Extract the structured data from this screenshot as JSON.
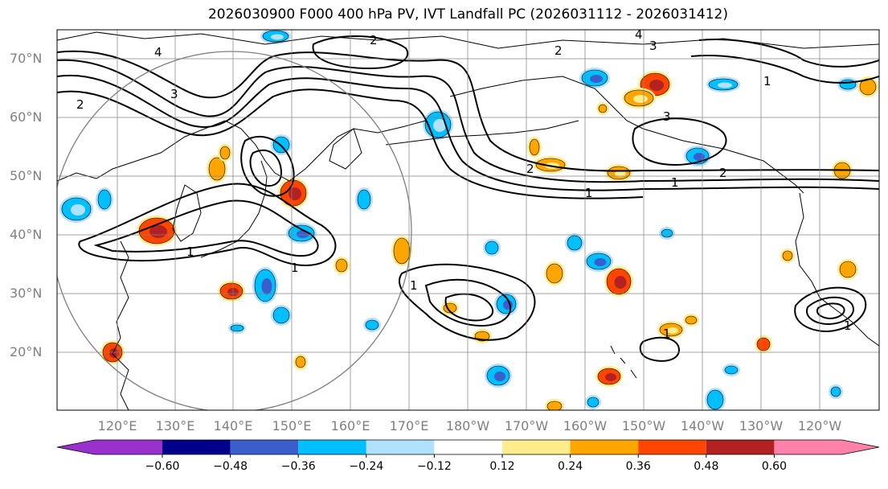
{
  "title": "2026030900 F000 400 hPa PV, IVT Landfall PC (2026031112 - 2026031412)",
  "lat_labels": [
    "70°N",
    "60°N",
    "50°N",
    "40°N",
    "30°N",
    "20°N"
  ],
  "lon_labels": [
    "120°E",
    "130°E",
    "140°E",
    "150°E",
    "160°E",
    "170°E",
    "180°W",
    "170°W",
    "160°W",
    "150°W",
    "140°W",
    "130°W",
    "120°W"
  ],
  "colorbar": {
    "ticks": [
      "−0.60",
      "−0.48",
      "−0.36",
      "−0.24",
      "−0.12",
      "0.12",
      "0.24",
      "0.36",
      "0.48",
      "0.60"
    ],
    "colors": [
      "#9932CC",
      "#00008B",
      "#3A5FCD",
      "#00BFFF",
      "#B0E2FF",
      "#FFFFFF",
      "#FFEC8B",
      "#FFA500",
      "#FF4500",
      "#B22222",
      "#FF82AB"
    ]
  },
  "contour_labels": [
    "1",
    "2",
    "3",
    "4"
  ],
  "colors": {
    "grid": "#808080",
    "coast": "#000000",
    "contour": "#000000",
    "circle": "#808080"
  }
}
